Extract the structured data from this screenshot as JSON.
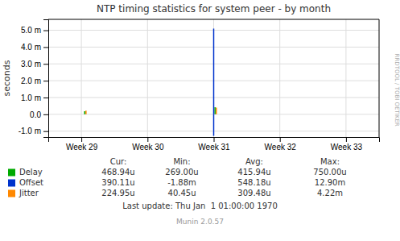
{
  "chart_data": {
    "type": "stem",
    "title": "NTP timing statistics for system peer - by month",
    "ylabel": "seconds",
    "xlim": [
      0.5,
      5.5
    ],
    "xticks": [
      {
        "value": 1,
        "label": "Week 29"
      },
      {
        "value": 2,
        "label": "Week 30"
      },
      {
        "value": 3,
        "label": "Week 31"
      },
      {
        "value": 4,
        "label": "Week 32"
      },
      {
        "value": 5,
        "label": "Week 33"
      }
    ],
    "ylim": [
      -0.00135,
      0.00565
    ],
    "yticks": [
      {
        "value": -0.001,
        "label": "-1.0 m"
      },
      {
        "value": 0.0,
        "label": "0.0"
      },
      {
        "value": 0.001,
        "label": "1.0 m"
      },
      {
        "value": 0.002,
        "label": "2.0 m"
      },
      {
        "value": 0.003,
        "label": "3.0 m"
      },
      {
        "value": 0.004,
        "label": "4.0 m"
      },
      {
        "value": 0.005,
        "label": "5.0 m"
      }
    ],
    "grid": true,
    "legend": "bottom",
    "stats_headers": [
      "Cur:",
      "Min:",
      "Avg:",
      "Max:"
    ],
    "series": [
      {
        "name": "Delay",
        "color": "#00aa00",
        "x": [
          1.05,
          3.02
        ],
        "values": [
          0.00018,
          0.00042
        ],
        "stats": [
          "468.94u",
          "269.00u",
          "415.94u",
          "750.00u"
        ]
      },
      {
        "name": "Offset",
        "color": "#0033cc",
        "x": [
          3.0,
          3.0
        ],
        "values": [
          0.0051,
          -0.00128
        ],
        "stats": [
          "390.11u",
          "-1.88m",
          "548.18u",
          "12.90m"
        ]
      },
      {
        "name": "Jitter",
        "color": "#ff8800",
        "x": [
          1.07,
          3.04
        ],
        "values": [
          0.00022,
          0.0004
        ],
        "stats": [
          "224.95u",
          "40.45u",
          "309.48u",
          "4.22m"
        ]
      }
    ],
    "annotations": [
      "RRDTOOL / TOBI OETIKER",
      "Last update: Thu Jan  1 01:00:00 1970",
      "Munin 2.0.57"
    ]
  }
}
